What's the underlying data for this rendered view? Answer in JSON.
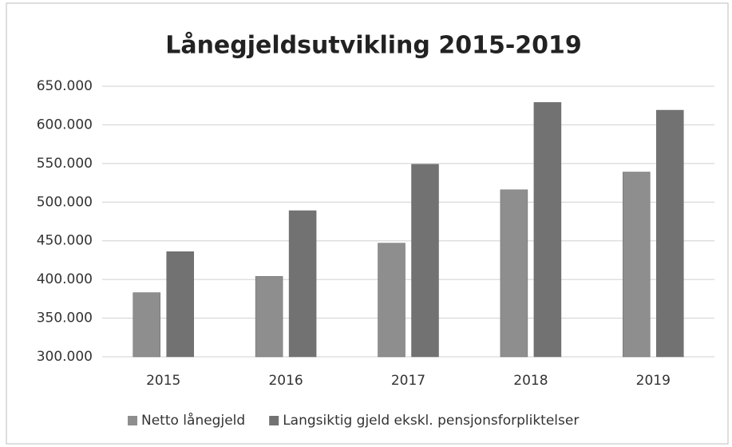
{
  "chart_data": {
    "type": "bar",
    "title": "Lånegjeldsutvikling 2015-2019",
    "categories": [
      "2015",
      "2016",
      "2017",
      "2018",
      "2019"
    ],
    "series": [
      {
        "name": "Netto lånegjeld",
        "color": "#8e8e8e",
        "values": [
          383000,
          404000,
          447000,
          516000,
          539000
        ]
      },
      {
        "name": "Langsiktig gjeld ekskl. pensjonsforpliktelser",
        "color": "#727272",
        "values": [
          436000,
          489000,
          549000,
          629000,
          619000
        ]
      }
    ],
    "ylim": [
      300000,
      650000
    ],
    "yticks": [
      {
        "value": 300000,
        "label": "300.000"
      },
      {
        "value": 350000,
        "label": "350.000"
      },
      {
        "value": 400000,
        "label": "400.000"
      },
      {
        "value": 450000,
        "label": "450.000"
      },
      {
        "value": 500000,
        "label": "500.000"
      },
      {
        "value": 550000,
        "label": "550.000"
      },
      {
        "value": 600000,
        "label": "600.000"
      },
      {
        "value": 650000,
        "label": "650.000"
      }
    ],
    "grid": true,
    "legend": "bottom"
  }
}
